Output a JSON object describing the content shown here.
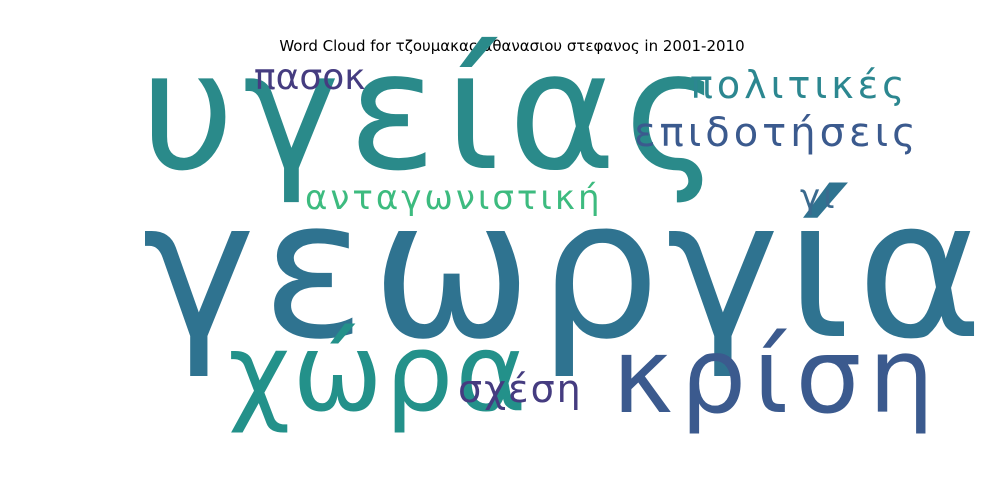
{
  "title": "Word Cloud for τζουμακας αθανασιου στεφανος in 2001-2010",
  "words": [
    {
      "text": "υγείας",
      "color": "#2a8a8a"
    },
    {
      "text": "γεωργία",
      "color": "#2f7390"
    },
    {
      "text": "κρίση",
      "color": "#3b5a8e"
    },
    {
      "text": "χώρα",
      "color": "#23918a"
    },
    {
      "text": "πασοκ",
      "color": "#453c80"
    },
    {
      "text": "πολιτικές",
      "color": "#2c8790"
    },
    {
      "text": "επιδοτήσεις",
      "color": "#3b5a8e"
    },
    {
      "text": "ανταγωνιστική",
      "color": "#3dbb7f"
    },
    {
      "text": "γι",
      "color": "#3a6a8e"
    },
    {
      "text": "σχέση",
      "color": "#453c80"
    }
  ]
}
